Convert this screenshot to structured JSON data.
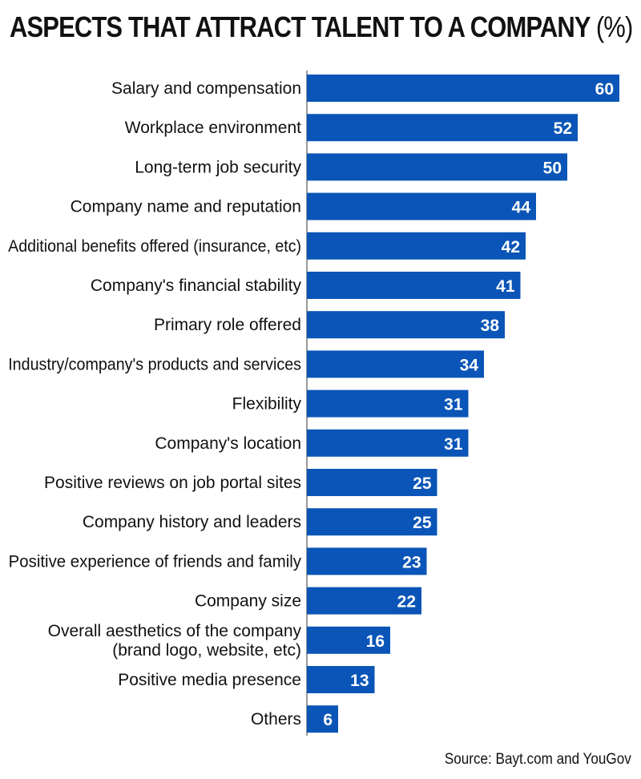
{
  "chart_data": {
    "type": "bar",
    "orientation": "horizontal",
    "title": "ASPECTS THAT ATTRACT TALENT TO A COMPANY",
    "title_unit": "(%)",
    "categories": [
      "Salary and compensation",
      "Workplace environment",
      "Long-term job security",
      "Company name and reputation",
      "Additional benefits offered (insurance, etc)",
      "Company's financial stability",
      "Primary role offered",
      "Industry/company's products and services",
      "Flexibility",
      "Company's location",
      "Positive reviews on job portal sites",
      "Company history and leaders",
      "Positive experience of friends and family",
      "Company size",
      "Overall aesthetics of the company\n(brand logo, website, etc)",
      "Positive media presence",
      "Others"
    ],
    "values": [
      60,
      52,
      50,
      44,
      42,
      41,
      38,
      34,
      31,
      31,
      25,
      25,
      23,
      22,
      16,
      13,
      6
    ],
    "xlim": [
      0,
      60
    ],
    "bar_color": "#0a55b7",
    "grid": false,
    "legend": "none"
  },
  "source": "Source: Bayt.com and YouGov"
}
